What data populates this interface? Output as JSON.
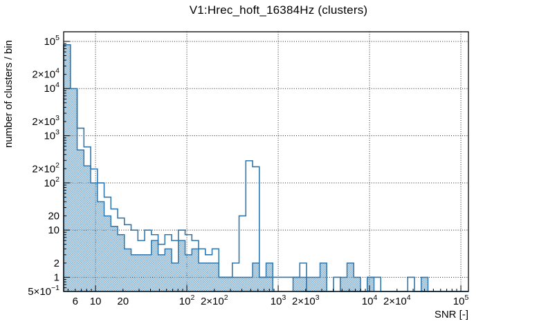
{
  "chart_data": {
    "type": "histogram",
    "title": "V1:Hrec_hoft_16384Hz (clusters)",
    "xlabel": "SNR [-]",
    "ylabel": "number of clusters / bin",
    "x_scale": "log",
    "y_scale": "log",
    "xlim": [
      4.48,
      121000
    ],
    "ylim": [
      0.5,
      160000
    ],
    "grid": "dotted-at-decades",
    "legend": "none",
    "bins": {
      "count": 60,
      "log10_first_edge": 0.6515,
      "log10_step": 0.073857
    },
    "series": [
      {
        "name": "clusters-filled-hatched",
        "style": "filled-hatch",
        "values": [
          85000,
          10000,
          500,
          230,
          100,
          40,
          20,
          12,
          8,
          4,
          3,
          3,
          3,
          6,
          3,
          4,
          2,
          6,
          3,
          4,
          2,
          2,
          2,
          1,
          1,
          1,
          1,
          1,
          2,
          1,
          2,
          0,
          0,
          0,
          1,
          1,
          1,
          1,
          2,
          0,
          0,
          1,
          2,
          1,
          0,
          1,
          0,
          0,
          0,
          0,
          0,
          0,
          0,
          1,
          0,
          0,
          0,
          0,
          0,
          0
        ]
      },
      {
        "name": "clusters-outline",
        "style": "line",
        "values": [
          85000,
          10000,
          1450,
          580,
          197,
          100,
          50,
          28,
          18,
          13,
          10,
          6,
          10,
          8,
          5,
          8,
          6,
          10,
          8,
          6,
          4,
          3,
          4,
          1,
          1,
          2,
          20,
          295,
          220,
          1,
          1,
          1,
          1,
          1,
          1,
          2,
          0,
          0,
          0,
          0,
          1,
          0,
          0,
          0,
          0,
          1,
          1,
          0,
          0,
          0,
          0,
          1,
          0,
          0,
          0,
          0,
          0,
          0,
          0,
          0
        ]
      }
    ],
    "x_ticks": [
      {
        "m": "6",
        "e": "",
        "v": 6
      },
      {
        "m": "10",
        "e": "",
        "v": 10
      },
      {
        "m": "20",
        "e": "",
        "v": 20
      },
      {
        "m": "10",
        "e": "2",
        "v": 100
      },
      {
        "m": "2×10",
        "e": "2",
        "v": 200
      },
      {
        "m": "10",
        "e": "3",
        "v": 1000
      },
      {
        "m": "2×10",
        "e": "3",
        "v": 2000
      },
      {
        "m": "10",
        "e": "4",
        "v": 10000
      },
      {
        "m": "2×10",
        "e": "4",
        "v": 20000
      },
      {
        "m": "10",
        "e": "5",
        "v": 100000
      }
    ],
    "y_ticks": [
      {
        "m": "10",
        "e": "5",
        "v": 100000
      },
      {
        "m": "2×10",
        "e": "4",
        "v": 20000
      },
      {
        "m": "10",
        "e": "4",
        "v": 10000
      },
      {
        "m": "2×10",
        "e": "3",
        "v": 2000
      },
      {
        "m": "10",
        "e": "3",
        "v": 1000
      },
      {
        "m": "2×10",
        "e": "2",
        "v": 200
      },
      {
        "m": "10",
        "e": "2",
        "v": 100
      },
      {
        "m": "20",
        "e": "",
        "v": 20
      },
      {
        "m": "10",
        "e": "",
        "v": 10
      },
      {
        "m": "2",
        "e": "",
        "v": 2
      },
      {
        "m": "1",
        "e": "",
        "v": 1
      },
      {
        "m": "5×10",
        "e": "−1",
        "v": 0.5
      }
    ],
    "grid_decades_x": [
      10,
      100,
      1000,
      10000,
      100000
    ],
    "grid_decades_y": [
      1,
      10,
      100,
      1000,
      10000,
      100000
    ],
    "colors": {
      "histogram_line": "#2f76ad",
      "hatch_fill": "#5b97c2",
      "grid": "#222222",
      "frame": "#000000",
      "background": "#ffffff",
      "text": "#000000"
    }
  }
}
